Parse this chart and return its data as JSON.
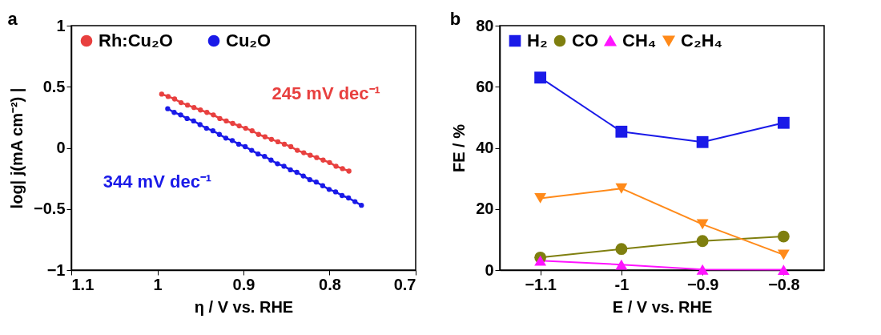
{
  "chart_data": [
    {
      "type": "line",
      "title": "a",
      "xlabel": "η / V vs. RHE",
      "ylabel": "log| j(mA cm⁻²) |",
      "xlim": [
        1.1,
        0.7
      ],
      "xticks": [
        1.1,
        {
          "value": 1.0,
          "label": "1"
        },
        0.9,
        0.8,
        0.7
      ],
      "ylim": [
        -1,
        1
      ],
      "yticks": [
        -1,
        -0.5,
        0,
        0.5,
        1
      ],
      "grid": false,
      "legend": "top left",
      "marker": "circle",
      "series": [
        {
          "name": "Rh:Cu₂O",
          "color": "#e8403f",
          "x": [
            0.995,
            0.9875,
            0.98,
            0.9725,
            0.965,
            0.9575,
            0.95,
            0.9425,
            0.935,
            0.9275,
            0.92,
            0.9125,
            0.905,
            0.8975,
            0.89,
            0.8825,
            0.875,
            0.8675,
            0.86,
            0.8525,
            0.845,
            0.8375,
            0.83,
            0.8225,
            0.815,
            0.8075,
            0.8,
            0.7925,
            0.785,
            0.7775
          ],
          "values": [
            0.44,
            0.42,
            0.4,
            0.37,
            0.35,
            0.33,
            0.31,
            0.29,
            0.27,
            0.24,
            0.22,
            0.2,
            0.18,
            0.16,
            0.14,
            0.11,
            0.09,
            0.07,
            0.05,
            0.03,
            0.01,
            -0.02,
            -0.04,
            -0.06,
            -0.08,
            -0.1,
            -0.12,
            -0.15,
            -0.17,
            -0.19
          ]
        },
        {
          "name": "Cu₂O",
          "color": "#1a1ae8",
          "x": [
            0.988,
            0.9805,
            0.973,
            0.9655,
            0.958,
            0.9505,
            0.943,
            0.9355,
            0.928,
            0.9205,
            0.913,
            0.9055,
            0.898,
            0.8905,
            0.883,
            0.8755,
            0.868,
            0.8605,
            0.853,
            0.8455,
            0.838,
            0.8305,
            0.823,
            0.8155,
            0.808,
            0.8005,
            0.793,
            0.7855,
            0.778,
            0.7705,
            0.763
          ],
          "values": [
            0.32,
            0.29,
            0.27,
            0.24,
            0.22,
            0.19,
            0.16,
            0.14,
            0.11,
            0.08,
            0.06,
            0.03,
            0.01,
            -0.02,
            -0.05,
            -0.07,
            -0.1,
            -0.13,
            -0.15,
            -0.18,
            -0.2,
            -0.23,
            -0.26,
            -0.28,
            -0.31,
            -0.34,
            -0.36,
            -0.39,
            -0.41,
            -0.44,
            -0.47
          ]
        }
      ],
      "annotations": [
        "245 mV dec⁻¹",
        "344 mV dec⁻¹"
      ]
    },
    {
      "type": "line",
      "title": "b",
      "xlabel": "E / V vs. RHE",
      "ylabel": "FE / %",
      "xlim": [
        -1.15,
        -0.75
      ],
      "xticks": [
        -1.1,
        {
          "value": -1.0,
          "label": "-1"
        },
        -0.9,
        -0.8
      ],
      "ylim": [
        0,
        80
      ],
      "yticks": [
        0,
        20,
        40,
        60,
        80
      ],
      "grid": false,
      "legend": "top",
      "x": [
        -1.1,
        -1.0,
        -0.9,
        -0.8
      ],
      "series": [
        {
          "name": "H₂",
          "color": "#1a1ae8",
          "marker": "square",
          "values": [
            63,
            45.3,
            41.9,
            48.2
          ]
        },
        {
          "name": "CO",
          "color": "#7f7f0f",
          "marker": "circle",
          "values": [
            4.1,
            6.9,
            9.5,
            11
          ]
        },
        {
          "name": "CH₄",
          "color": "#ff14ff",
          "marker": "triangle",
          "values": [
            3.1,
            1.8,
            0.2,
            0.1
          ]
        },
        {
          "name": "C₂H₄",
          "color": "#ff8a1a",
          "marker": "triangle-down",
          "values": [
            23.5,
            26.7,
            15,
            5
          ]
        }
      ]
    }
  ]
}
